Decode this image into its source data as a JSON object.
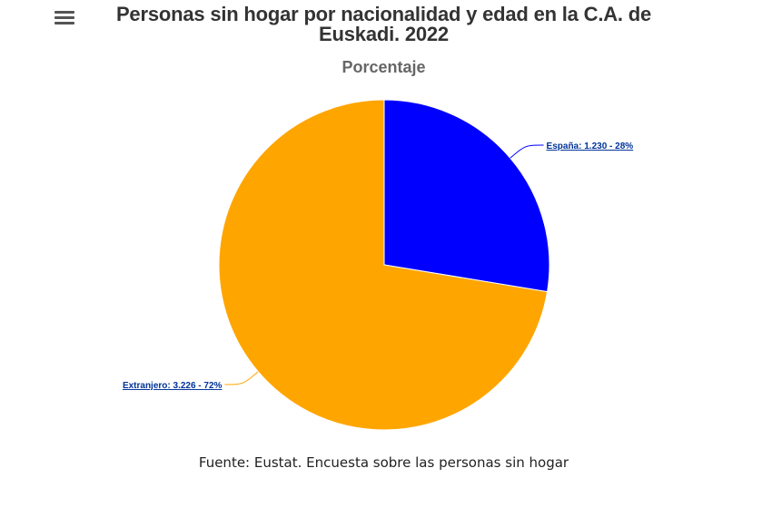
{
  "header": {
    "title": "Personas sin hogar por nacionalidad y edad en la C.A. de Euskadi. 2022",
    "menu_icon": "hamburger-menu-icon"
  },
  "chart_data": {
    "type": "pie",
    "subtitle": "Porcentaje",
    "slices": [
      {
        "label": "España",
        "value": 1230,
        "percent": 28,
        "color": "#0000ff",
        "data_label": "España: 1.230 - 28%"
      },
      {
        "label": "Extranjero",
        "value": 3226,
        "percent": 72,
        "color": "#ffa500",
        "data_label": "Extranjero: 3.226 - 72%"
      }
    ]
  },
  "footer": {
    "source": "Fuente: Eustat. Encuesta sobre las personas sin hogar"
  }
}
